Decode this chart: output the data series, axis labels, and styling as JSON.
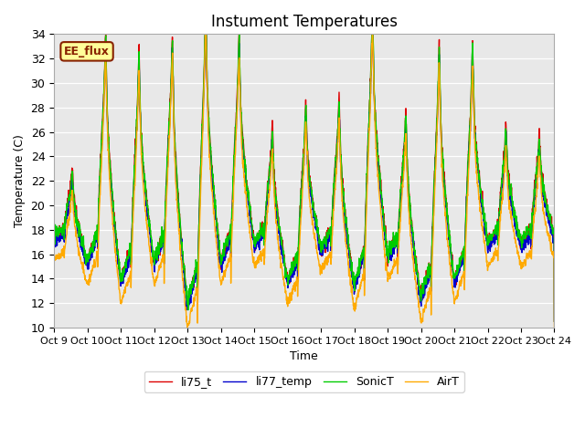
{
  "title": "Instument Temperatures",
  "xlabel": "Time",
  "ylabel": "Temperature (C)",
  "ylim": [
    10,
    34
  ],
  "yticks": [
    10,
    12,
    14,
    16,
    18,
    20,
    22,
    24,
    26,
    28,
    30,
    32,
    34
  ],
  "xtick_labels": [
    "Oct 9",
    "Oct 10",
    "Oct 11",
    "Oct 12",
    "Oct 13",
    "Oct 14",
    "Oct 15",
    "Oct 16",
    "Oct 17",
    "Oct 18",
    "Oct 19",
    "Oct 20",
    "Oct 21",
    "Oct 22",
    "Oct 23",
    "Oct 24"
  ],
  "series": {
    "li75_t": {
      "color": "#dd0000",
      "label": "li75_t"
    },
    "li77_temp": {
      "color": "#0000cc",
      "label": "li77_temp"
    },
    "SonicT": {
      "color": "#00cc00",
      "label": "SonicT"
    },
    "AirT": {
      "color": "#ffaa00",
      "label": "AirT"
    }
  },
  "annotation_text": "EE_flux",
  "annotation_bg": "#ffff99",
  "annotation_border": "#882200",
  "bg_color": "#e8e8e8",
  "fig_bg": "#ffffff",
  "linewidth": 1.0,
  "day_peaks": [
    22.0,
    31.5,
    30.0,
    31.5,
    33.5,
    31.5,
    25.0,
    26.5,
    27.0,
    33.5,
    26.0,
    30.5,
    30.5,
    25.0,
    24.5
  ],
  "night_mins": [
    17.0,
    15.0,
    13.5,
    15.0,
    11.5,
    15.0,
    16.5,
    13.5,
    16.0,
    13.0,
    15.5,
    12.0,
    13.5,
    16.5,
    16.5
  ]
}
